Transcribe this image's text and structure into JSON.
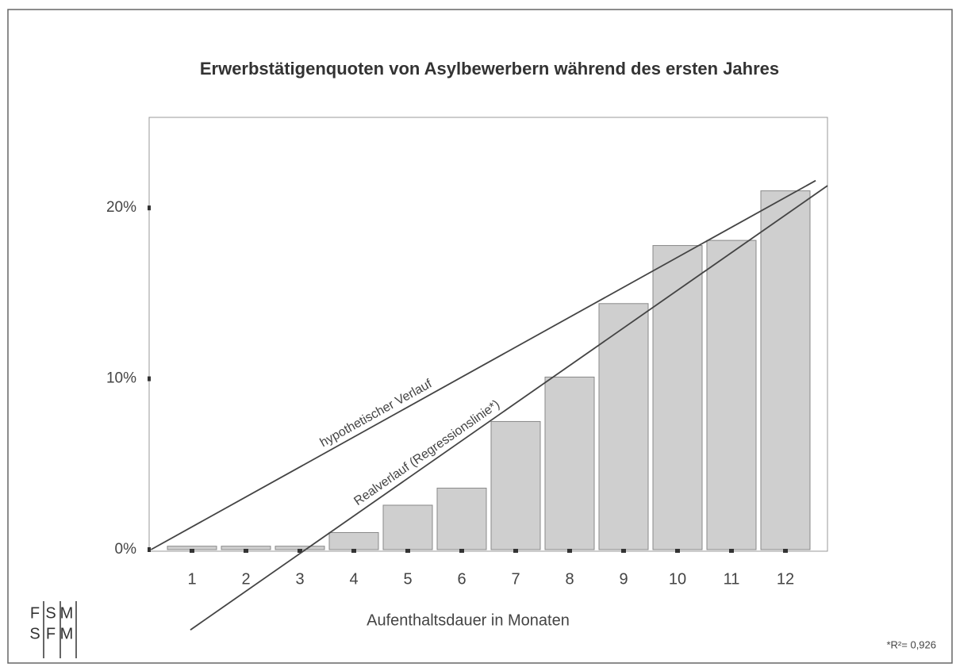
{
  "chart_data": {
    "type": "bar",
    "title": "Erwerbstätigenquoten von Asylbewerbern während des ersten Jahres",
    "x_label": "Aufenthaltsdauer in Monaten",
    "categories": [
      "1",
      "2",
      "3",
      "4",
      "5",
      "6",
      "7",
      "8",
      "9",
      "10",
      "11",
      "12"
    ],
    "values": [
      0.2,
      0.2,
      0.2,
      1.0,
      2.6,
      3.6,
      7.5,
      10.1,
      14.4,
      17.8,
      18.1,
      21.0
    ],
    "color": "#cfcfcf",
    "ylim": [
      0,
      25.3
    ],
    "yticks": [
      {
        "value": 0,
        "label": "0%"
      },
      {
        "value": 10,
        "label": "10%"
      },
      {
        "value": 20,
        "label": "20%"
      }
    ],
    "lines": [
      {
        "name": "hypothetischer Verlauf",
        "x": [
          0.24,
          12.56
        ],
        "values": [
          0,
          21.6
        ]
      },
      {
        "name": "Realverlauf (Regressionslinie*)",
        "x": [
          0.97,
          12.78
        ],
        "values": [
          -4.7,
          21.3
        ]
      }
    ],
    "annotation": "*R²= 0,926",
    "logo": [
      "F",
      "S",
      "M",
      "S",
      "F",
      "M"
    ]
  }
}
